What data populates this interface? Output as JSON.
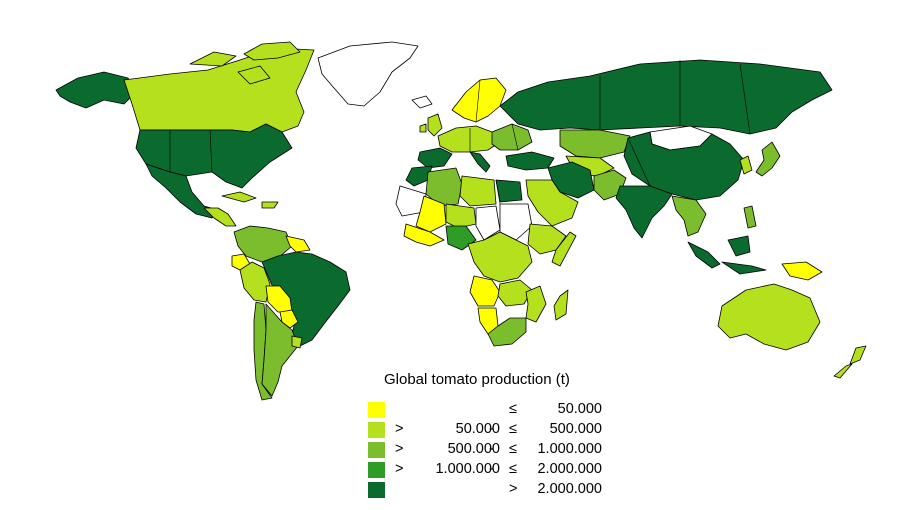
{
  "legend": {
    "title": "Global tomato production (t)",
    "classes": [
      {
        "color": "#ffff00",
        "gt": "",
        "low": "",
        "dash": "",
        "le": "≤",
        "high": "50.000"
      },
      {
        "color": "#b5e01e",
        "gt": ">",
        "low": "50.000",
        "dash": "-",
        "le": "≤",
        "high": "500.000"
      },
      {
        "color": "#7cbd2e",
        "gt": ">",
        "low": "500.000",
        "dash": "-",
        "le": "≤",
        "high": "1.000.000"
      },
      {
        "color": "#2f9c28",
        "gt": ">",
        "low": "1.000.000",
        "dash": "-",
        "le": "≤",
        "high": "2.000.000"
      },
      {
        "color": "#0b6b2e",
        "gt": "",
        "low": "",
        "dash": "",
        "le": ">",
        "high": "2.000.000"
      }
    ]
  },
  "colors": {
    "no_data": "#ffffff",
    "class_1": "#ffff00",
    "class_2": "#b5e01e",
    "class_3": "#7cbd2e",
    "class_4": "#2f9c28",
    "class_5": "#0b6b2e"
  }
}
